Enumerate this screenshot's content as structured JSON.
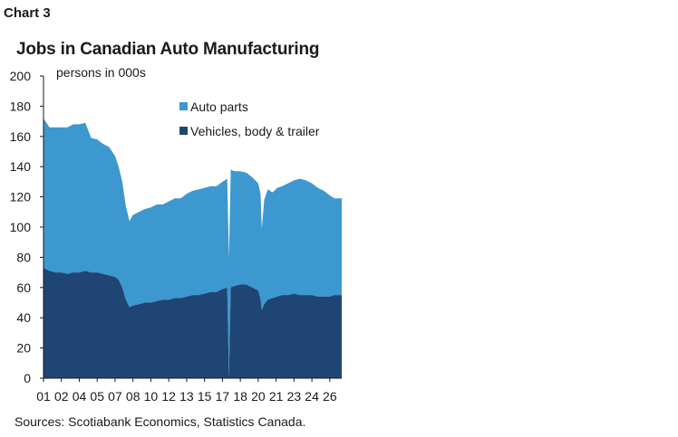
{
  "header": {
    "chart_number": "Chart 3",
    "title": "Jobs in Canadian Auto Manufacturing"
  },
  "footer": {
    "sources": "Sources: Scotiabank Economics, Statistics Canada."
  },
  "colors": {
    "auto_parts": "#3d98cf",
    "vehicles": "#1f4574",
    "axis": "#1a1a1a"
  },
  "chart_data": {
    "type": "area",
    "stacked": true,
    "title": "Jobs in Canadian Auto Manufacturing",
    "ylabel": "persons in 000s",
    "xlabel": "",
    "ylim": [
      0,
      200
    ],
    "xlim": [
      2001.0,
      2026.0
    ],
    "grid": false,
    "legend_position": "top-right",
    "y_ticks": [
      0,
      20,
      40,
      60,
      80,
      100,
      120,
      140,
      160,
      180,
      200
    ],
    "x_ticks": [
      "01",
      "02",
      "04",
      "05",
      "07",
      "08",
      "10",
      "12",
      "13",
      "15",
      "17",
      "18",
      "20",
      "21",
      "23",
      "24",
      "26"
    ],
    "x_tick_values": [
      2001,
      2002.5,
      2004,
      2005.5,
      2007,
      2008.5,
      2010,
      2011.5,
      2013,
      2014.5,
      2016,
      2017.5,
      2019,
      2020.5,
      2022,
      2023.5,
      2025
    ],
    "x": [
      2001.0,
      2001.5,
      2002.0,
      2002.5,
      2003.0,
      2003.5,
      2004.0,
      2004.5,
      2005.0,
      2005.5,
      2006.0,
      2006.5,
      2007.0,
      2007.3,
      2007.6,
      2007.9,
      2008.2,
      2008.5,
      2009.0,
      2009.5,
      2010.0,
      2010.5,
      2011.0,
      2011.5,
      2012.0,
      2012.5,
      2013.0,
      2013.5,
      2014.0,
      2014.5,
      2015.0,
      2015.5,
      2016.0,
      2016.4,
      2016.55,
      2016.7,
      2017.0,
      2017.5,
      2018.0,
      2018.5,
      2019.0,
      2019.2,
      2019.3,
      2019.5,
      2019.8,
      2020.2,
      2020.6,
      2021.0,
      2021.5,
      2022.0,
      2022.5,
      2023.0,
      2023.5,
      2024.0,
      2024.5,
      2025.0,
      2025.4,
      2026.0
    ],
    "series": [
      {
        "name": "Vehicles, body & trailer",
        "values": [
          73,
          71,
          70,
          70,
          69,
          70,
          70,
          71,
          70,
          70,
          69,
          68,
          67,
          65,
          60,
          52,
          47,
          48,
          49,
          50,
          50,
          51,
          52,
          52,
          53,
          53,
          54,
          55,
          55,
          56,
          57,
          57,
          59,
          60,
          0,
          60,
          61,
          62,
          62,
          60,
          58,
          52,
          45,
          49,
          52,
          53,
          54,
          55,
          55,
          56,
          55,
          55,
          55,
          54,
          54,
          54,
          55,
          55
        ]
      },
      {
        "name": "Auto parts",
        "values": [
          99,
          95,
          96,
          96,
          97,
          98,
          98,
          98,
          89,
          88,
          86,
          85,
          80,
          75,
          70,
          62,
          57,
          60,
          61,
          62,
          63,
          64,
          63,
          65,
          66,
          66,
          68,
          69,
          70,
          70,
          70,
          70,
          71,
          72,
          79,
          78,
          76,
          75,
          74,
          73,
          71,
          70,
          54,
          69,
          73,
          70,
          72,
          72,
          74,
          75,
          77,
          76,
          74,
          72,
          70,
          67,
          64,
          64
        ]
      }
    ]
  }
}
